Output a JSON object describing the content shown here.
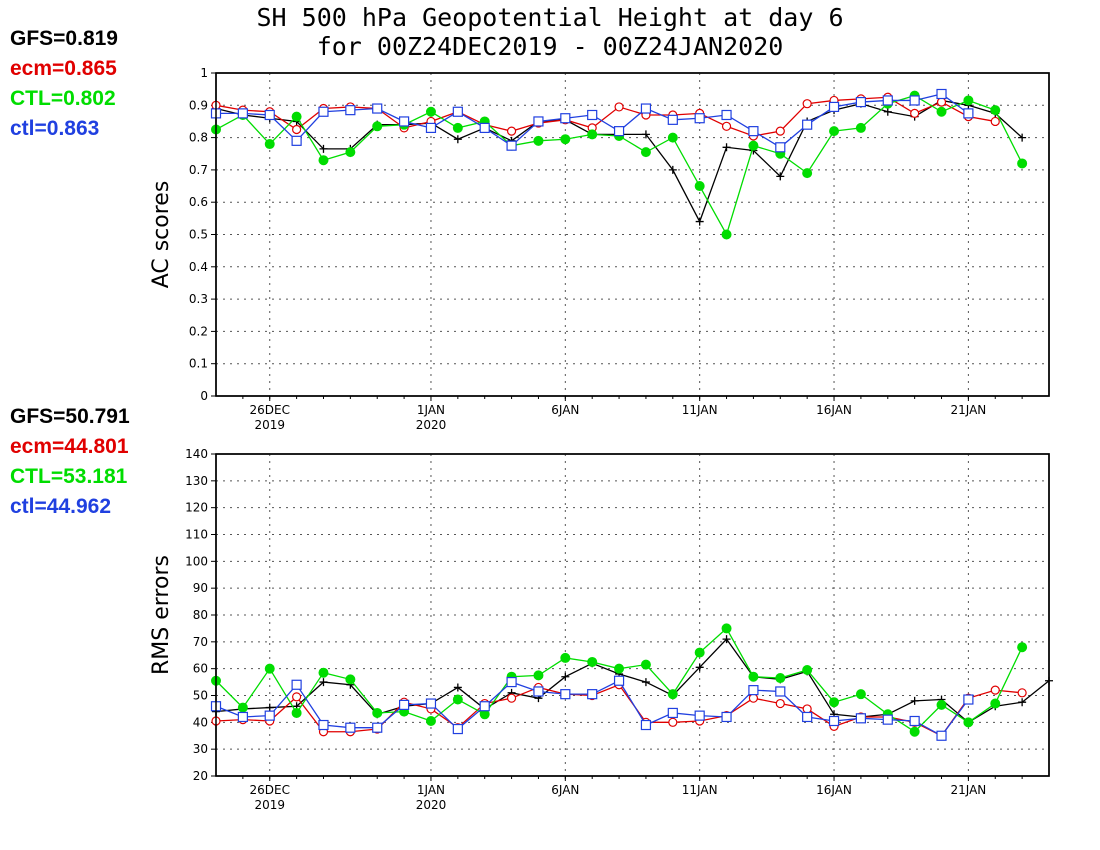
{
  "title_line1": "SH 500 hPa Geopotential Height at day 6",
  "title_line2": "for 00Z24DEC2019 - 00Z24JAN2020",
  "colors": {
    "GFS": "#000000",
    "ecm": "#e00000",
    "CTL": "#00dd00",
    "ctl": "#2040e0"
  },
  "ac_stats": [
    {
      "label": "GFS=0.819",
      "color": "#000000"
    },
    {
      "label": "ecm=0.865",
      "color": "#e00000"
    },
    {
      "label": "CTL=0.802",
      "color": "#00dd00"
    },
    {
      "label": "ctl=0.863",
      "color": "#2040e0"
    }
  ],
  "rms_stats": [
    {
      "label": "GFS=50.791",
      "color": "#000000"
    },
    {
      "label": "ecm=44.801",
      "color": "#e00000"
    },
    {
      "label": "CTL=53.181",
      "color": "#00dd00"
    },
    {
      "label": "ctl=44.962",
      "color": "#2040e0"
    }
  ],
  "chart_data": [
    {
      "type": "line",
      "ylabel": "AC scores",
      "ylim": [
        0,
        1
      ],
      "yticks": [
        "0",
        "0.1",
        "0.2",
        "0.3",
        "0.4",
        "0.5",
        "0.6",
        "0.7",
        "0.8",
        "0.9",
        "1"
      ],
      "xlim_days": [
        0,
        31
      ],
      "x_start_date": "24DEC2019",
      "xticks": [
        {
          "day": 2,
          "line1": "26DEC",
          "line2": "2019"
        },
        {
          "day": 8,
          "line1": "1JAN",
          "line2": "2020"
        },
        {
          "day": 13,
          "line1": "6JAN",
          "line2": ""
        },
        {
          "day": 18,
          "line1": "11JAN",
          "line2": ""
        },
        {
          "day": 23,
          "line1": "16JAN",
          "line2": ""
        },
        {
          "day": 28,
          "line1": "21JAN",
          "line2": ""
        }
      ],
      "grid": true,
      "series": [
        {
          "name": "GFS",
          "marker": "plus",
          "start_day": 0,
          "values": [
            0.89,
            0.87,
            0.86,
            0.85,
            0.765,
            0.765,
            0.84,
            0.84,
            0.845,
            0.795,
            0.83,
            0.79,
            0.85,
            0.855,
            0.81,
            0.81,
            0.81,
            0.7,
            0.54,
            0.77,
            0.76,
            0.68,
            0.85,
            0.885,
            0.905,
            0.88,
            0.865,
            0.915,
            0.9,
            0.875,
            0.8
          ]
        },
        {
          "name": "ecm",
          "marker": "circle",
          "start_day": 0,
          "values": [
            0.9,
            0.885,
            0.88,
            0.825,
            0.89,
            0.895,
            0.89,
            0.83,
            0.85,
            0.88,
            0.84,
            0.82,
            0.845,
            0.855,
            0.83,
            0.895,
            0.87,
            0.87,
            0.875,
            0.835,
            0.805,
            0.82,
            0.905,
            0.915,
            0.92,
            0.925,
            0.875,
            0.91,
            0.865,
            0.85
          ]
        },
        {
          "name": "CTL",
          "marker": "filled-circle",
          "start_day": 0,
          "values": [
            0.825,
            0.87,
            0.78,
            0.865,
            0.73,
            0.755,
            0.835,
            0.84,
            0.88,
            0.83,
            0.85,
            0.775,
            0.79,
            0.795,
            0.81,
            0.805,
            0.755,
            0.8,
            0.65,
            0.5,
            0.775,
            0.75,
            0.69,
            0.82,
            0.83,
            0.905,
            0.93,
            0.88,
            0.915,
            0.885,
            0.72
          ]
        },
        {
          "name": "ctl",
          "marker": "square",
          "start_day": 0,
          "values": [
            0.875,
            0.875,
            0.87,
            0.79,
            0.88,
            0.885,
            0.89,
            0.85,
            0.83,
            0.88,
            0.83,
            0.775,
            0.85,
            0.86,
            0.87,
            0.82,
            0.89,
            0.855,
            0.86,
            0.87,
            0.82,
            0.77,
            0.84,
            0.895,
            0.91,
            0.915,
            0.915,
            0.935,
            0.875
          ]
        }
      ]
    },
    {
      "type": "line",
      "ylabel": "RMS errors",
      "ylim": [
        20,
        140
      ],
      "yticks": [
        "20",
        "30",
        "40",
        "50",
        "60",
        "70",
        "80",
        "90",
        "100",
        "110",
        "120",
        "130",
        "140"
      ],
      "xlim_days": [
        0,
        31
      ],
      "x_start_date": "24DEC2019",
      "xticks": [
        {
          "day": 2,
          "line1": "26DEC",
          "line2": "2019"
        },
        {
          "day": 8,
          "line1": "1JAN",
          "line2": "2020"
        },
        {
          "day": 13,
          "line1": "6JAN",
          "line2": ""
        },
        {
          "day": 18,
          "line1": "11JAN",
          "line2": ""
        },
        {
          "day": 23,
          "line1": "16JAN",
          "line2": ""
        },
        {
          "day": 28,
          "line1": "21JAN",
          "line2": ""
        }
      ],
      "grid": true,
      "series": [
        {
          "name": "GFS",
          "marker": "plus",
          "start_day": 0,
          "values": [
            44,
            45,
            45.5,
            46,
            55,
            54,
            43,
            46,
            47,
            53,
            45,
            51,
            49,
            57,
            62,
            58,
            55,
            50,
            60.5,
            71,
            57,
            56,
            59,
            43,
            42,
            43,
            48,
            48.5,
            40,
            46,
            47.5,
            55.5
          ]
        },
        {
          "name": "ecm",
          "marker": "circle",
          "start_day": 0,
          "values": [
            40.5,
            41,
            40.5,
            49.5,
            36.5,
            36.5,
            37.5,
            47.5,
            45,
            38,
            47,
            49,
            53,
            50.5,
            50,
            54,
            40,
            40,
            40.5,
            42.5,
            49,
            47,
            45,
            38.5,
            42,
            42,
            40,
            35,
            49,
            52,
            51
          ]
        },
        {
          "name": "CTL",
          "marker": "filled-circle",
          "start_day": 0,
          "values": [
            55.5,
            45.5,
            60,
            43.5,
            58.5,
            56,
            43.5,
            44,
            40.5,
            48.5,
            43,
            57,
            57.5,
            64,
            62.5,
            60,
            61.5,
            50.5,
            66,
            75,
            57,
            56.5,
            59.5,
            47.5,
            50.5,
            43,
            36.5,
            46.5,
            40,
            47,
            68
          ]
        },
        {
          "name": "ctl",
          "marker": "square",
          "start_day": 0,
          "values": [
            46,
            42,
            42.5,
            54,
            39,
            38,
            38,
            46.5,
            47,
            37.5,
            46,
            55,
            51.5,
            50.5,
            50.5,
            55.5,
            39,
            43.5,
            42.5,
            42,
            52,
            51.5,
            42,
            40.5,
            41.5,
            41,
            40.5,
            35,
            48.5
          ]
        }
      ]
    }
  ]
}
